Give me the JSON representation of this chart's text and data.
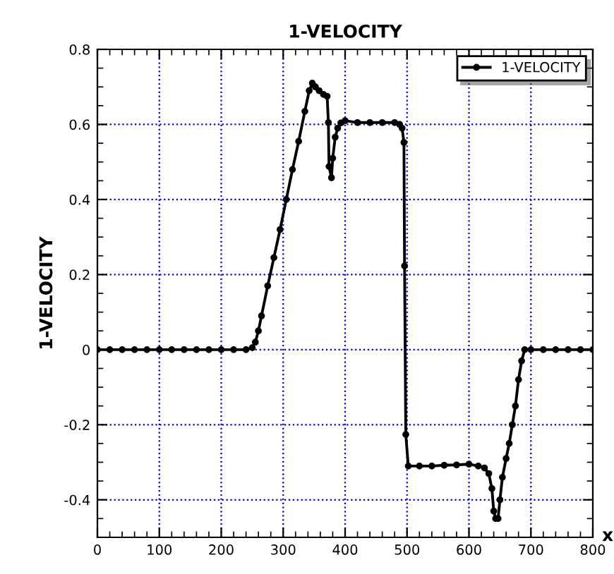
{
  "chart_data": {
    "type": "line",
    "title": "1-VELOCITY",
    "xlabel": "x",
    "ylabel": "1-VELOCITY",
    "series": [
      {
        "name": "1-VELOCITY",
        "color": "#000000",
        "x": [
          0,
          20,
          40,
          60,
          80,
          100,
          120,
          140,
          160,
          180,
          200,
          220,
          240,
          250,
          255,
          260,
          265,
          275,
          285,
          295,
          305,
          315,
          325,
          335,
          342,
          347,
          352,
          358,
          365,
          371,
          373,
          374,
          378,
          380,
          384,
          388,
          393,
          400,
          420,
          440,
          460,
          480,
          488,
          492,
          495,
          496,
          498,
          502,
          520,
          540,
          560,
          580,
          600,
          615,
          625,
          632,
          637,
          640,
          643,
          647,
          650,
          654,
          660,
          665,
          670,
          675,
          680,
          685,
          690,
          700,
          720,
          740,
          760,
          780,
          800
        ],
        "values": [
          0,
          0,
          0,
          0,
          0,
          0,
          0,
          0,
          0,
          0,
          0,
          0,
          0,
          0.005,
          0.02,
          0.05,
          0.09,
          0.17,
          0.245,
          0.32,
          0.4,
          0.48,
          0.555,
          0.635,
          0.69,
          0.71,
          0.7,
          0.69,
          0.68,
          0.675,
          0.605,
          0.488,
          0.458,
          0.51,
          0.566,
          0.59,
          0.604,
          0.61,
          0.605,
          0.605,
          0.605,
          0.605,
          0.6,
          0.59,
          0.552,
          0.223,
          -0.226,
          -0.31,
          -0.31,
          -0.31,
          -0.308,
          -0.307,
          -0.305,
          -0.31,
          -0.315,
          -0.33,
          -0.37,
          -0.43,
          -0.45,
          -0.45,
          -0.4,
          -0.34,
          -0.29,
          -0.25,
          -0.2,
          -0.15,
          -0.08,
          -0.03,
          0,
          0,
          0,
          0,
          0,
          0,
          0
        ]
      }
    ],
    "xlim": [
      0,
      800
    ],
    "xticks": [
      0,
      100,
      200,
      300,
      400,
      500,
      600,
      700,
      800
    ],
    "ylim": [
      -0.5,
      0.8
    ],
    "yticks": [
      -0.4,
      -0.2,
      0,
      0.2,
      0.4,
      0.6,
      0.8
    ],
    "grid": true,
    "legend": "top right",
    "marker": "circle",
    "line_style": "solid"
  }
}
